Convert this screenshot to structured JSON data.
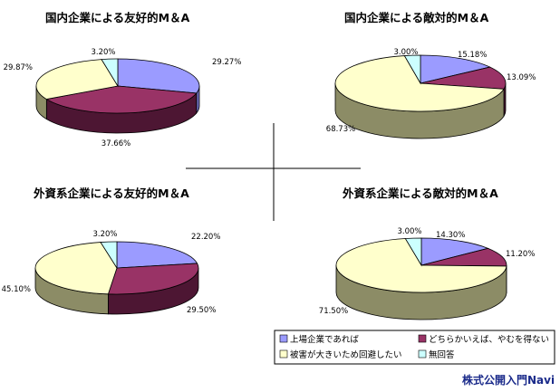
{
  "chart_data": [
    {
      "type": "pie",
      "title": "国内企業による友好的M＆A",
      "values": [
        29.27,
        37.66,
        29.87,
        3.2
      ],
      "labels": [
        "29.27%",
        "37.66%",
        "29.87%",
        "3.20%"
      ]
    },
    {
      "type": "pie",
      "title": "国内企業による敵対的M＆A",
      "values": [
        15.18,
        13.09,
        68.73,
        3.0
      ],
      "labels": [
        "15.18%",
        "13.09%",
        "68.73%",
        "3.00%"
      ]
    },
    {
      "type": "pie",
      "title": "外資系企業による友好的M＆A",
      "values": [
        22.2,
        29.5,
        45.1,
        3.2
      ],
      "labels": [
        "22.20%",
        "29.50%",
        "45.10%",
        "3.20%"
      ]
    },
    {
      "type": "pie",
      "title": "外資系企業による敵対的M＆A",
      "values": [
        14.3,
        11.2,
        71.5,
        3.0
      ],
      "labels": [
        "14.30%",
        "11.20%",
        "71.50%",
        "3.00%"
      ]
    }
  ],
  "legend": {
    "items": [
      {
        "label": "上場企業であれば",
        "color": "#9b9bff",
        "side": "#6b6bb8"
      },
      {
        "label": "どちらかいえば、やむを得ない",
        "color": "#993366",
        "side": "#4d1633"
      },
      {
        "label": "被害が大きいため回避したい",
        "color": "#ffffcc",
        "side": "#8c8c66"
      },
      {
        "label": "無回答",
        "color": "#ccffff",
        "side": "#7aa3a3"
      }
    ]
  },
  "brand": {
    "text": "株式公開入門Navi"
  }
}
